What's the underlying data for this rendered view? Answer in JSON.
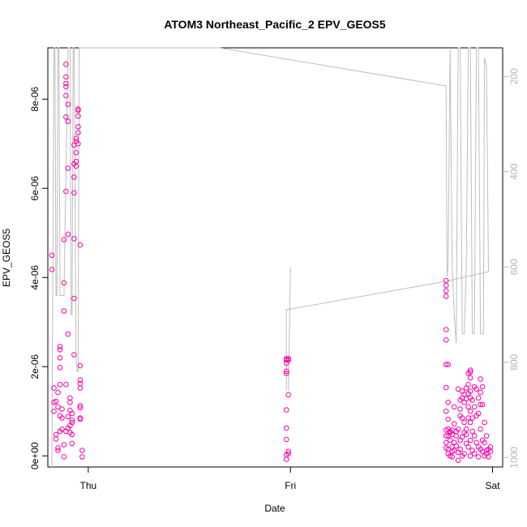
{
  "chart_data": {
    "type": "scatter",
    "title": "ATOM3 Northeast_Pacific_2 EPV_GEOS5",
    "xlabel": "Date",
    "ylabel": "EPV_GEOS5",
    "x_ticks": [
      "Thu",
      "Fri",
      "Sat"
    ],
    "y_ticks": [
      "0e+00",
      "2e-06",
      "4e-06",
      "6e-06",
      "8e-06"
    ],
    "y_tick_values": [
      0,
      2e-06,
      4e-06,
      6e-06,
      8e-06
    ],
    "ylim": [
      -2.5e-07,
      9.15e-06
    ],
    "y2_ticks": [
      "200",
      "400",
      "600",
      "800",
      "1000"
    ],
    "y2_tick_values": [
      200,
      400,
      600,
      800,
      1000
    ],
    "y2lim": [
      1020,
      140
    ],
    "x_domain_days": [
      -0.2,
      2.05
    ],
    "point_color": "#ff00aa",
    "line_color": "#bebebe",
    "series": [
      {
        "label_x_units": "days from Thu 00:00",
        "points": [
          [
            -0.18,
            4.5e-06
          ],
          [
            -0.18,
            4.18e-06
          ],
          [
            -0.17,
            1.52e-06
          ],
          [
            -0.17,
            1.2e-06
          ],
          [
            -0.17,
            1e-06
          ],
          [
            -0.16,
            1.22e-06
          ],
          [
            -0.16,
            4.8e-07
          ],
          [
            -0.16,
            3.8e-07
          ],
          [
            -0.15,
            1.42e-06
          ],
          [
            -0.15,
            1.1e-06
          ],
          [
            -0.15,
            1.8e-07
          ],
          [
            -0.15,
            1.2e-07
          ],
          [
            -0.14,
            2.45e-06
          ],
          [
            -0.14,
            2.38e-06
          ],
          [
            -0.14,
            2.2e-06
          ],
          [
            -0.14,
            1.98e-06
          ],
          [
            -0.14,
            1.6e-06
          ],
          [
            -0.14,
            9e-07
          ],
          [
            -0.14,
            5.5e-07
          ],
          [
            -0.13,
            6e-07
          ],
          [
            -0.13,
            8.5e-07
          ],
          [
            -0.13,
            1.05e-06
          ],
          [
            -0.12,
            2.5e-07
          ],
          [
            -0.12,
            -2e-08
          ],
          [
            -0.12,
            3.25e-06
          ],
          [
            -0.12,
            3.88e-06
          ],
          [
            -0.12,
            4.85e-06
          ],
          [
            -0.11,
            5.93e-06
          ],
          [
            -0.11,
            8.5e-06
          ],
          [
            -0.11,
            8.78e-06
          ],
          [
            -0.11,
            8.28e-06
          ],
          [
            -0.11,
            8.35e-06
          ],
          [
            -0.11,
            7.6e-06
          ],
          [
            -0.11,
            8.08e-06
          ],
          [
            -0.11,
            1.6e-06
          ],
          [
            -0.11,
            5.5e-07
          ],
          [
            -0.1,
            7.88e-06
          ],
          [
            -0.1,
            7.5e-06
          ],
          [
            -0.1,
            6.45e-06
          ],
          [
            -0.1,
            4.97e-06
          ],
          [
            -0.1,
            2.73e-06
          ],
          [
            -0.1,
            6.2e-07
          ],
          [
            -0.1,
            8.8e-07
          ],
          [
            -0.09,
            5.2e-07
          ],
          [
            -0.09,
            6.8e-07
          ],
          [
            -0.09,
            1.02e-06
          ],
          [
            -0.09,
            1.2e-06
          ],
          [
            -0.09,
            1.3e-06
          ],
          [
            -0.08,
            8e-07
          ],
          [
            -0.08,
            9.5e-07
          ],
          [
            -0.08,
            7.5e-07
          ],
          [
            -0.08,
            4.8e-07
          ],
          [
            -0.08,
            2.8e-07
          ],
          [
            -0.07,
            2.27e-06
          ],
          [
            -0.07,
            3.53e-06
          ],
          [
            -0.07,
            4.87e-06
          ],
          [
            -0.07,
            5.9e-06
          ],
          [
            -0.07,
            6.25e-06
          ],
          [
            -0.07,
            6.55e-06
          ],
          [
            -0.07,
            6.97e-06
          ],
          [
            -0.06,
            7.05e-06
          ],
          [
            -0.06,
            7.12e-06
          ],
          [
            -0.06,
            6.8e-06
          ],
          [
            -0.06,
            6.6e-06
          ],
          [
            -0.06,
            6.5e-06
          ],
          [
            -0.05,
            7.25e-06
          ],
          [
            -0.05,
            7.38e-06
          ],
          [
            -0.05,
            7.62e-06
          ],
          [
            -0.05,
            7.75e-06
          ],
          [
            -0.05,
            7.78e-06
          ],
          [
            -0.05,
            7e-06
          ],
          [
            -0.04,
            4.73e-06
          ],
          [
            -0.04,
            2.02e-06
          ],
          [
            -0.04,
            1.7e-06
          ],
          [
            -0.04,
            1.62e-06
          ],
          [
            -0.04,
            1.52e-06
          ],
          [
            -0.04,
            1.12e-06
          ],
          [
            -0.04,
            1.08e-06
          ],
          [
            -0.04,
            8.5e-07
          ],
          [
            -0.04,
            8.2e-07
          ],
          [
            -0.03,
            1.2e-07
          ],
          [
            -0.03,
            -2e-08
          ],
          [
            0.98,
            2.18e-06
          ],
          [
            0.98,
            2.15e-06
          ],
          [
            0.98,
            2.08e-06
          ],
          [
            0.98,
            1.9e-06
          ],
          [
            0.98,
            1.85e-06
          ],
          [
            0.98,
            1.03e-06
          ],
          [
            0.98,
            6.2e-07
          ],
          [
            0.98,
            3.7e-07
          ],
          [
            0.98,
            2e-08
          ],
          [
            0.98,
            -8e-08
          ],
          [
            0.99,
            2.18e-06
          ],
          [
            0.99,
            2.15e-06
          ],
          [
            0.99,
            1.37e-06
          ],
          [
            0.99,
            1e-07
          ],
          [
            0.99,
            5e-08
          ],
          [
            1.77,
            3.93e-06
          ],
          [
            1.77,
            3.82e-06
          ],
          [
            1.77,
            3.7e-06
          ],
          [
            1.77,
            3.58e-06
          ],
          [
            1.77,
            2.83e-06
          ],
          [
            1.77,
            2.6e-06
          ],
          [
            1.77,
            2.05e-06
          ],
          [
            1.77,
            1.53e-06
          ],
          [
            1.77,
            1e-06
          ],
          [
            1.77,
            5.8e-07
          ],
          [
            1.77,
            4.5e-07
          ],
          [
            1.77,
            3e-07
          ],
          [
            1.77,
            1.8e-07
          ],
          [
            1.78,
            2.05e-06
          ],
          [
            1.78,
            1.2e-06
          ],
          [
            1.78,
            8.2e-07
          ],
          [
            1.78,
            6e-07
          ],
          [
            1.78,
            4.5e-07
          ],
          [
            1.78,
            1.5e-07
          ],
          [
            1.78,
            5e-08
          ],
          [
            1.79,
            5.5e-07
          ],
          [
            1.79,
            5.2e-07
          ],
          [
            1.79,
            3.5e-07
          ],
          [
            1.79,
            0.0
          ],
          [
            1.8,
            5.8e-07
          ],
          [
            1.8,
            4.8e-07
          ],
          [
            1.8,
            2e-07
          ],
          [
            1.8,
            1e-07
          ],
          [
            1.8,
            -2e-08
          ],
          [
            1.81,
            1.1e-06
          ],
          [
            1.81,
            7.2e-07
          ],
          [
            1.81,
            3e-07
          ],
          [
            1.81,
            1.2e-07
          ],
          [
            1.82,
            5.5e-07
          ],
          [
            1.82,
            4.5e-07
          ],
          [
            1.82,
            2.2e-07
          ],
          [
            1.83,
            1.5e-06
          ],
          [
            1.83,
            6e-07
          ],
          [
            1.83,
            8e-08
          ],
          [
            1.83,
            -1e-07
          ],
          [
            1.84,
            1.25e-06
          ],
          [
            1.84,
            1.05e-06
          ],
          [
            1.84,
            9e-07
          ],
          [
            1.84,
            3.5e-07
          ],
          [
            1.84,
            1.5e-07
          ],
          [
            1.85,
            1.45e-06
          ],
          [
            1.85,
            1.3e-06
          ],
          [
            1.85,
            8.5e-07
          ],
          [
            1.85,
            4.2e-07
          ],
          [
            1.85,
            0.0
          ],
          [
            1.86,
            1.38e-06
          ],
          [
            1.86,
            1.2e-06
          ],
          [
            1.86,
            7.5e-07
          ],
          [
            1.86,
            5.2e-07
          ],
          [
            1.86,
            5e-08
          ],
          [
            1.87,
            1.52e-06
          ],
          [
            1.87,
            1.28e-06
          ],
          [
            1.87,
            6e-07
          ],
          [
            1.87,
            4.8e-07
          ],
          [
            1.87,
            2.8e-07
          ],
          [
            1.88,
            1.85e-06
          ],
          [
            1.88,
            1.6e-06
          ],
          [
            1.88,
            1.4e-06
          ],
          [
            1.88,
            1.1e-06
          ],
          [
            1.88,
            8.5e-07
          ],
          [
            1.88,
            2e-07
          ],
          [
            1.89,
            1.92e-06
          ],
          [
            1.89,
            1.88e-06
          ],
          [
            1.89,
            1.75e-06
          ],
          [
            1.89,
            1.45e-06
          ],
          [
            1.89,
            1.3e-06
          ],
          [
            1.89,
            1e-06
          ],
          [
            1.89,
            7.5e-07
          ],
          [
            1.89,
            3.5e-07
          ],
          [
            1.89,
            0.0
          ],
          [
            1.9,
            1.25e-06
          ],
          [
            1.9,
            8.5e-07
          ],
          [
            1.9,
            5.5e-07
          ],
          [
            1.9,
            1.2e-07
          ],
          [
            1.91,
            1.55e-06
          ],
          [
            1.91,
            1.1e-06
          ],
          [
            1.91,
            4.5e-07
          ],
          [
            1.91,
            5e-08
          ],
          [
            1.92,
            1.5e-06
          ],
          [
            1.92,
            9e-07
          ],
          [
            1.92,
            3e-07
          ],
          [
            1.93,
            1.3e-06
          ],
          [
            1.93,
            9.5e-07
          ],
          [
            1.93,
            2e-07
          ],
          [
            1.93,
            -2e-08
          ],
          [
            1.94,
            1.72e-06
          ],
          [
            1.94,
            1.42e-06
          ],
          [
            1.94,
            1.15e-06
          ],
          [
            1.94,
            6e-07
          ],
          [
            1.94,
            1.5e-07
          ],
          [
            1.95,
            1.55e-06
          ],
          [
            1.95,
            1.15e-06
          ],
          [
            1.95,
            3.5e-07
          ],
          [
            1.95,
            1e-07
          ],
          [
            1.96,
            7.5e-07
          ],
          [
            1.96,
            3e-07
          ],
          [
            1.96,
            0.0
          ],
          [
            1.97,
            4.5e-07
          ],
          [
            1.97,
            1.2e-07
          ],
          [
            1.97,
            5e-08
          ],
          [
            1.98,
            1.5e-07
          ],
          [
            1.98,
            -2e-08
          ],
          [
            1.99,
            2e-07
          ],
          [
            1.99,
            1e-07
          ]
        ]
      },
      {
        "label_x_units": "days from Thu 00:00 (pressure, right axis)",
        "line": [
          [
            -0.18,
            1080
          ],
          [
            -0.175,
            600
          ],
          [
            -0.17,
            140
          ],
          [
            -0.165,
            140
          ],
          [
            -0.16,
            660
          ],
          [
            -0.155,
            660
          ],
          [
            -0.15,
            140
          ],
          [
            -0.145,
            140
          ],
          [
            -0.14,
            660
          ],
          [
            -0.12,
            660
          ],
          [
            -0.1,
            140
          ],
          [
            -0.09,
            140
          ],
          [
            -0.085,
            700
          ],
          [
            -0.08,
            700
          ],
          [
            -0.075,
            140
          ],
          [
            -0.07,
            140
          ],
          [
            -0.06,
            800
          ],
          [
            -0.055,
            820
          ],
          [
            -0.05,
            820
          ],
          [
            -0.045,
            140
          ],
          [
            -0.04,
            140
          ],
          [
            -0.03,
            140
          ],
          [
            0.65,
            140
          ],
          [
            1.77,
            220
          ],
          [
            1.775,
            620
          ],
          [
            1.78,
            600
          ],
          [
            1.79,
            140
          ],
          [
            1.8,
            600
          ],
          [
            1.81,
            700
          ],
          [
            1.82,
            760
          ],
          [
            1.83,
            140
          ],
          [
            1.84,
            140
          ],
          [
            1.85,
            740
          ],
          [
            1.86,
            740
          ],
          [
            1.87,
            600
          ],
          [
            1.88,
            140
          ],
          [
            1.89,
            140
          ],
          [
            1.9,
            740
          ],
          [
            1.91,
            740
          ],
          [
            1.92,
            140
          ],
          [
            1.93,
            140
          ],
          [
            1.94,
            740
          ],
          [
            1.95,
            740
          ],
          [
            1.955,
            740
          ],
          [
            1.96,
            160
          ],
          [
            1.97,
            180
          ],
          [
            1.98,
            610
          ]
        ],
        "fri_segment": [
          [
            0.98,
            860
          ],
          [
            0.98,
            690
          ],
          [
            1.77,
            630
          ],
          [
            1.98,
            610
          ]
        ],
        "fri_spike": [
          [
            0.99,
            860
          ],
          [
            1.0,
            600
          ]
        ]
      }
    ]
  }
}
